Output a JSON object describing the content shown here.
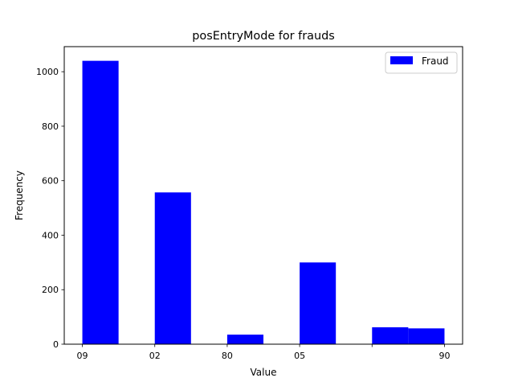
{
  "chart_data": {
    "type": "bar",
    "title": "posEntryMode for frauds",
    "xlabel": "Value",
    "ylabel": "Frequency",
    "categories": [
      "09",
      "02",
      "80",
      "05",
      "",
      "90"
    ],
    "bins": [
      {
        "from": 0,
        "to": 0.5,
        "value": 1040
      },
      {
        "from": 1,
        "to": 1.5,
        "value": 557
      },
      {
        "from": 2,
        "to": 2.5,
        "value": 35
      },
      {
        "from": 3,
        "to": 3.5,
        "value": 300
      },
      {
        "from": 4,
        "to": 4.5,
        "value": 62
      },
      {
        "from": 4.5,
        "to": 5,
        "value": 58
      }
    ],
    "xlim": [
      -0.25,
      5.25
    ],
    "ylim": [
      0,
      1092
    ],
    "yticks": [
      0,
      200,
      400,
      600,
      800,
      1000
    ],
    "xticks": [
      0,
      1,
      2,
      3,
      4,
      5
    ],
    "series": [
      {
        "name": "Fraud",
        "color": "#0000ff"
      }
    ],
    "legend_position": "top-right",
    "grid": false
  }
}
